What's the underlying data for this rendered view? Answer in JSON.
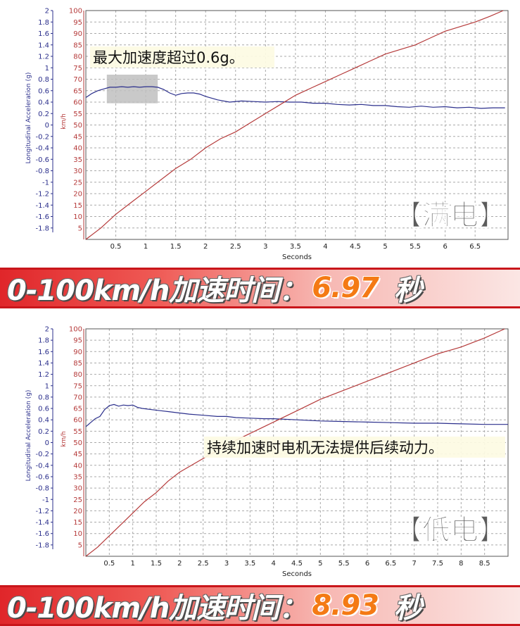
{
  "chart_data": [
    {
      "type": "line",
      "annotation": "最大加速度超过0.6g。",
      "badge": "【满电】",
      "xlabel": "Seconds",
      "ylabel_left": "Longitudinal Acceleration (g)",
      "ylabel_right": "km/h",
      "xlim": [
        0,
        7.05
      ],
      "ylim_left": [
        -2,
        2
      ],
      "ylim_right": [
        0,
        100
      ],
      "x_ticks": [
        "0.5",
        "1",
        "1.5",
        "2",
        "2.5",
        "3",
        "3.5",
        "4",
        "4.5",
        "5",
        "5.5",
        "6",
        "6.5"
      ],
      "left_ticks": [
        "2",
        "1.8",
        "1.6",
        "1.4",
        "1.2",
        "1",
        "0.8",
        "0.6",
        "0.4",
        "0.2",
        "0",
        "-0.2",
        "-0.4",
        "-0.6",
        "-0.8",
        "-1",
        "-1.2",
        "-1.4",
        "-1.6",
        "-1.8"
      ],
      "right_ticks": [
        "100",
        "95",
        "90",
        "85",
        "80",
        "75",
        "70",
        "65",
        "60",
        "55",
        "50",
        "45",
        "40",
        "35",
        "30",
        "25",
        "20",
        "15",
        "10",
        "5"
      ],
      "grid": true,
      "highlight": {
        "x": [
          0.35,
          1.2
        ],
        "y": [
          0.38,
          0.88
        ]
      },
      "series": [
        {
          "axis": "left",
          "color": "#2b2f8c",
          "x": [
            0,
            0.1,
            0.2,
            0.3,
            0.4,
            0.5,
            0.6,
            0.7,
            0.8,
            0.9,
            1.0,
            1.1,
            1.2,
            1.3,
            1.4,
            1.5,
            1.6,
            1.7,
            1.8,
            1.9,
            2.0,
            2.2,
            2.4,
            2.6,
            2.8,
            3.0,
            3.2,
            3.4,
            3.6,
            3.8,
            4.0,
            4.2,
            4.4,
            4.6,
            4.8,
            5.0,
            5.2,
            5.4,
            5.6,
            5.8,
            6.0,
            6.2,
            6.4,
            6.6,
            6.8,
            7.0
          ],
          "y": [
            0.48,
            0.55,
            0.6,
            0.63,
            0.66,
            0.66,
            0.67,
            0.66,
            0.67,
            0.66,
            0.67,
            0.67,
            0.66,
            0.62,
            0.56,
            0.52,
            0.55,
            0.56,
            0.56,
            0.54,
            0.5,
            0.44,
            0.4,
            0.42,
            0.41,
            0.4,
            0.41,
            0.4,
            0.4,
            0.38,
            0.38,
            0.36,
            0.35,
            0.36,
            0.34,
            0.34,
            0.32,
            0.31,
            0.33,
            0.31,
            0.32,
            0.3,
            0.31,
            0.29,
            0.3,
            0.3
          ]
        },
        {
          "axis": "right",
          "color": "#b53a3a",
          "x": [
            0,
            0.25,
            0.5,
            0.75,
            1.0,
            1.25,
            1.5,
            1.75,
            2.0,
            2.25,
            2.5,
            2.75,
            3.0,
            3.25,
            3.5,
            3.75,
            4.0,
            4.25,
            4.5,
            4.75,
            5.0,
            5.25,
            5.5,
            5.75,
            6.0,
            6.25,
            6.5,
            6.75,
            6.97
          ],
          "y": [
            0,
            5,
            11,
            16,
            21,
            26,
            31,
            35,
            40,
            44,
            47,
            51,
            55,
            59,
            63,
            66,
            69,
            72,
            75,
            78,
            81,
            83,
            85,
            88,
            91,
            93,
            95,
            97.5,
            100
          ]
        }
      ]
    },
    {
      "type": "line",
      "annotation": "持续加速时电机无法提供后续动力。",
      "badge": "【低电】",
      "xlabel": "Seconds",
      "ylabel_left": "Longitudinal Acceleration (g)",
      "ylabel_right": "km/h",
      "xlim": [
        0,
        9.0
      ],
      "ylim_left": [
        -2,
        2
      ],
      "ylim_right": [
        0,
        100
      ],
      "x_ticks": [
        "0.5",
        "1",
        "1.5",
        "2",
        "2.5",
        "3",
        "3.5",
        "4",
        "4.5",
        "5",
        "5.5",
        "6",
        "6.5",
        "7",
        "7.5",
        "8",
        "8.5"
      ],
      "left_ticks": [
        "2",
        "1.8",
        "1.6",
        "1.4",
        "1.2",
        "1",
        "0.8",
        "0.6",
        "0.4",
        "0.2",
        "0",
        "-0.2",
        "-0.4",
        "-0.6",
        "-0.8",
        "-1",
        "-1.2",
        "-1.4",
        "-1.6",
        "-1.8"
      ],
      "right_ticks": [
        "100",
        "95",
        "90",
        "85",
        "80",
        "75",
        "70",
        "65",
        "60",
        "55",
        "50",
        "45",
        "40",
        "35",
        "30",
        "25",
        "20",
        "15",
        "10",
        "5"
      ],
      "grid": true,
      "series": [
        {
          "axis": "left",
          "color": "#2b2f8c",
          "x": [
            0,
            0.1,
            0.2,
            0.3,
            0.4,
            0.5,
            0.6,
            0.7,
            0.8,
            0.9,
            1.0,
            1.1,
            1.2,
            1.4,
            1.6,
            1.8,
            2.0,
            2.2,
            2.5,
            2.8,
            3.0,
            3.2,
            3.5,
            3.8,
            4.0,
            4.5,
            5.0,
            5.5,
            6.0,
            6.5,
            7.0,
            7.5,
            8.0,
            8.5,
            9.0
          ],
          "y": [
            0.28,
            0.35,
            0.42,
            0.46,
            0.58,
            0.65,
            0.67,
            0.64,
            0.66,
            0.65,
            0.66,
            0.62,
            0.6,
            0.58,
            0.56,
            0.54,
            0.52,
            0.5,
            0.48,
            0.46,
            0.46,
            0.44,
            0.43,
            0.42,
            0.42,
            0.4,
            0.38,
            0.37,
            0.36,
            0.35,
            0.34,
            0.34,
            0.33,
            0.32,
            0.32
          ]
        },
        {
          "axis": "right",
          "color": "#b53a3a",
          "x": [
            0,
            0.25,
            0.5,
            0.75,
            1.0,
            1.25,
            1.5,
            1.75,
            2.0,
            2.5,
            3.0,
            3.5,
            4.0,
            4.5,
            5.0,
            5.5,
            6.0,
            6.5,
            7.0,
            7.5,
            8.0,
            8.5,
            8.93
          ],
          "y": [
            0,
            4,
            9,
            14,
            19,
            24,
            28,
            33,
            37,
            43,
            49,
            54,
            59,
            64,
            69,
            73,
            77,
            81,
            85,
            89,
            92,
            96,
            100
          ]
        }
      ]
    }
  ],
  "banners": [
    {
      "label": "0-100km/h加速时间：",
      "value": "6.97",
      "unit": "秒"
    },
    {
      "label": "0-100km/h加速时间：",
      "value": "8.93",
      "unit": "秒"
    }
  ],
  "colors": {
    "grid": "#a9a9a9",
    "left_axis": "#2b2f8c",
    "right_axis": "#b53a3a",
    "badge": "#5c5c5c"
  }
}
